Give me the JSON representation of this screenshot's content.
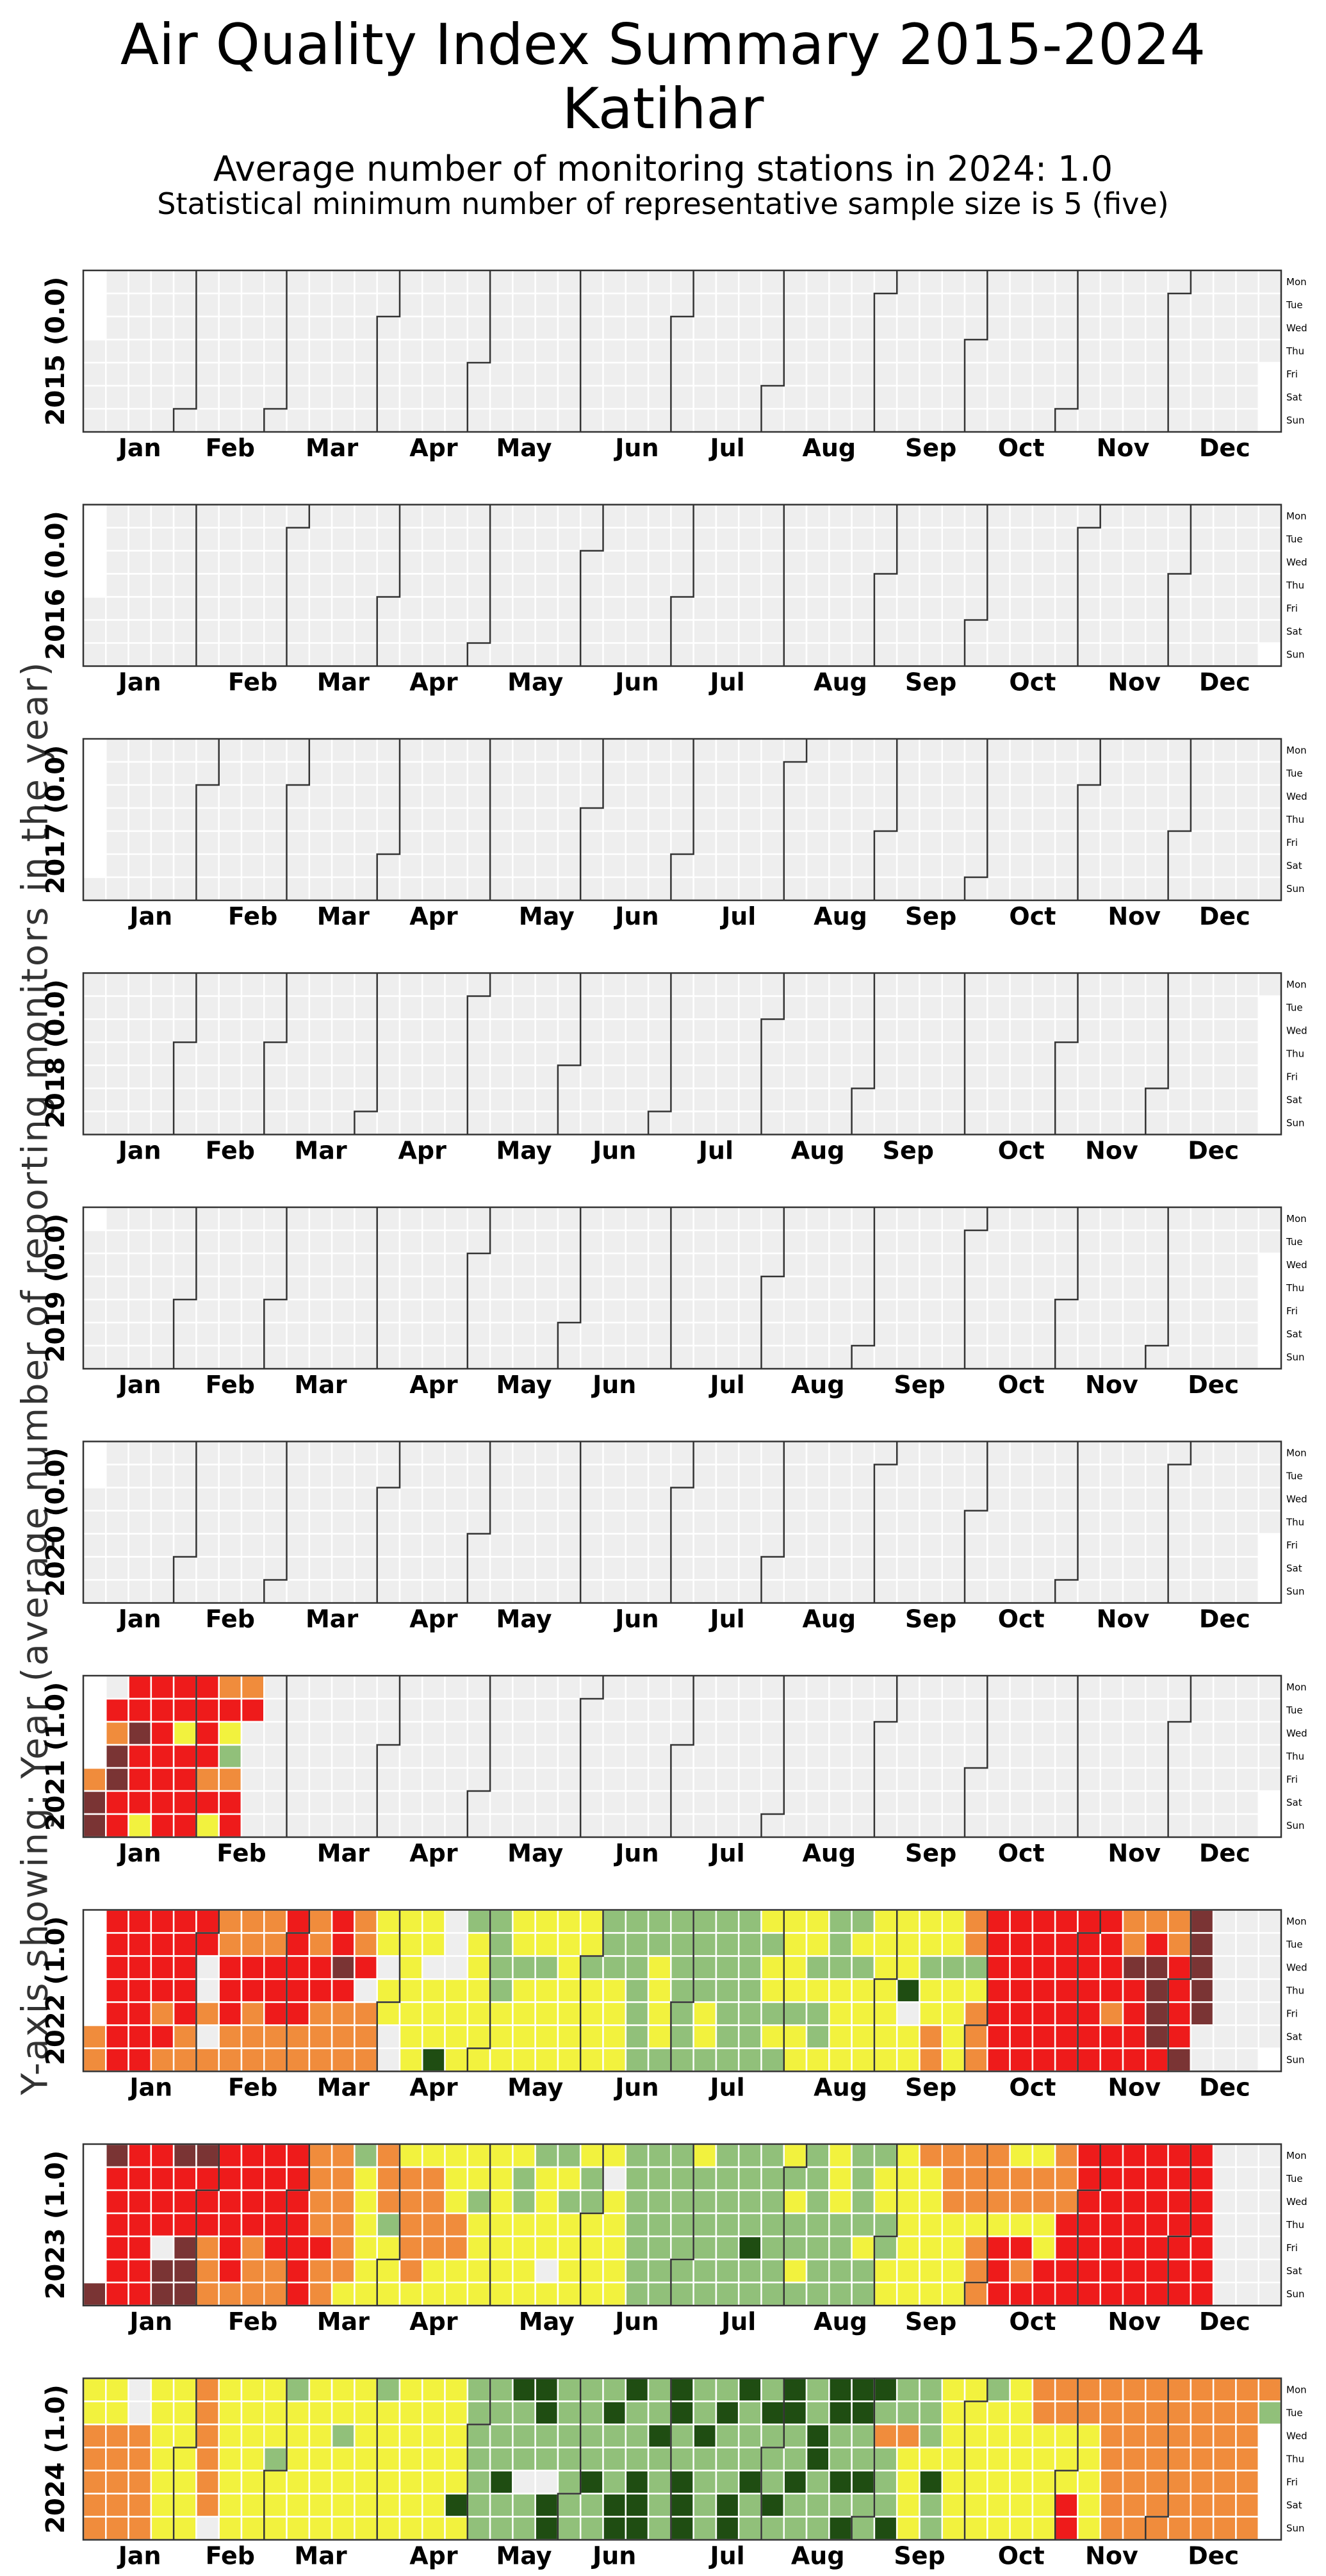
{
  "header": {
    "title": "Air Quality Index Summary 2015-2024",
    "city": "Katihar",
    "subtitle": "Average number of monitoring stations in 2024: 1.0",
    "note": "Statistical minimum number of representative sample size is 5 (five)"
  },
  "chart_data": {
    "type": "heatmap",
    "ylabel": "Y-axis showing: Year (average number of reporting monitors in the year)",
    "months": [
      "Jan",
      "Feb",
      "Mar",
      "Apr",
      "May",
      "Jun",
      "Jul",
      "Aug",
      "Sep",
      "Oct",
      "Nov",
      "Dec"
    ],
    "weekdays": [
      "Mon",
      "Tue",
      "Wed",
      "Thu",
      "Fri",
      "Sat",
      "Sun"
    ],
    "category_colors": {
      "no_data": "#eeeeee",
      "good": "#1f4d12",
      "satisfactory": "#91c07a",
      "moderate": "#f2f23e",
      "poor": "#f08c3c",
      "very_poor": "#ee1b1b",
      "severe": "#7a3434"
    },
    "legend_codes": "Each row of 'weeks' lists Mon..Sun category codes per week: . = no data, G = good, S = satisfactory, M = moderate, P = poor, V = very poor, X = severe",
    "years": [
      {
        "label": "2015 (0.0)",
        "year": 2015,
        "weeks": []
      },
      {
        "label": "2016 (0.0)",
        "year": 2016,
        "weeks": []
      },
      {
        "label": "2017 (0.0)",
        "year": 2017,
        "weeks": []
      },
      {
        "label": "2018 (0.0)",
        "year": 2018,
        "weeks": []
      },
      {
        "label": "2019 (0.0)",
        "year": 2019,
        "weeks": []
      },
      {
        "label": "2020 (0.0)",
        "year": 2020,
        "weeks": []
      },
      {
        "label": "2021 (1.0)",
        "year": 2021,
        "weeks": [
          "..P.PXX",
          ".VPXXVV",
          "VVXVVVM",
          "VVVVVVV",
          "VVMVVVV",
          "VVVVPVM",
          "PVMSPVV",
          "PV"
        ]
      },
      {
        "label": "2022 (1.0)",
        "year": 2022,
        "weeks": [
          ".....PP",
          "VVVVVVV",
          "VVVVVVV",
          "VVVVPVP",
          "VVVVVPP",
          "VV..P.P",
          "PPVVVPP",
          "PPVVPPP",
          "PPVVVPP",
          "VVVVVPP",
          "PPVVPPP",
          "VVXVPPP",
          "PPV.PPP",
          "MM.MM..",
          "MMMMMMM",
          "MM.MMMG",
          "...MMMM",
          "SMMMMMM",
          "SSSSMMM",
          "MMSMMMM",
          "MMSMMMM",
          "MMMMMMM",
          "MMSMMMM",
          "SSSMMMM",
          "SSSSSSS",
          "SSMMMMS",
          "SSSSSSS",
          "SSSSMMS",
          "SSSSSSS",
          "SSSSSSS",
          "MSMMSMS",
          "MMMMSMM",
          "MMSMSSM",
          "SSSMMMM",
          "SMSMMMM",
          "MMMMMMM",
          "MMMG.MM",
          "MMSMMPP",
          "MMSMMMM",
          "PPSMPPP",
          "VVVVVVV",
          "VVVVVVV",
          "VVVVVVV",
          "VVVVVVV",
          "VVVVVVV",
          "VVVVPVV",
          "PPXVVVV",
          "PVXXXXV",
          "PPVVVVX",
          "XXXXX"
        ]
      },
      {
        "label": "2023 (1.0)",
        "year": 2023,
        "weeks": [
          "......X",
          "XVVVVVV",
          "VVVVVVV",
          "VVVV.XX",
          "XVVVXXX",
          "XVVVPPP",
          "VVVVVVP",
          "VVVVPPP",
          "VVVVVPP",
          "VVVVVVV",
          "PPPPVPP",
          "PPPPPPM",
          "SMMMMMM",
          "PPPSMMM",
          "MPPPPPM",
          "MPPPPMM",
          "MMMPPMM",
          "MMSMMMM",
          "MMMMMMM",
          "MSSMMMM",
          "SMMMM.M",
          "SMSMMMM",
          "MSSMMMM",
          "M.MMMMM",
          "SSSSSSS",
          "SSSSSSS",
          "SSSSSSS",
          "MSSSSSS",
          "SSSSSSS",
          "SSSSGSS",
          "SSSSSSS",
          "MSMSSMS",
          "SSSSSSS",
          "MMMSSSS",
          "SSSSMSS",
          "SMMSSMM",
          "MMMMMMM",
          "PMMMMMM",
          "PPPMMMM",
          "PPPMPPP",
          "PPPMVVV",
          "MPPMVPV",
          "MPPMMVV",
          "PPPVVVV",
          "VVVVVVV",
          "VVVVVVV",
          "VVVVVVV",
          "VVVVVVV",
          "VVVVVVV",
          "VVVVVVV"
        ]
      },
      {
        "label": "2024 (1.0)",
        "year": 2024,
        "weeks": [
          "MMPPPPP",
          "MMPPPPP",
          "..PPPPP",
          "MMMMMMM",
          "MMMMMMM",
          "PPPPPP.",
          "MMMMMMM",
          "MMMMMMM",
          "MMMSMMM",
          "SMMMMMM",
          "MMMMMMM",
          "MMSMMMM",
          "MMMMMMM",
          "SMMMMMM",
          "MMMMMMM",
          "MMMMMMM",
          "MMMMMGM",
          "SSSSSSS",
          "SSSSGSS",
          "GSSS.SS",
          "GGSS.GG",
          "SSSSSSS",
          "SSSSGSS",
          "SGSSSGG",
          "GSSSGGG",
          "SSGSSSS",
          "GGSSGGG",
          "SSGSSSS",
          "SGSSSGG",
          "GSSSGSS",
          "SGSSSGS",
          "GGSSGSS",
          "SSGGSSS",
          "GGSSGSG",
          "GGSSGSS",
          "GSPSSSG",
          "SSPMMMM",
          "SSSMGSS",
          "MMMMMMM",
          "MMMMMMM",
          "SMMMMMM",
          "MMMMMMM",
          "PPMMMMM",
          "PPMMMVV",
          "PPMMMMM",
          "PPPPPPP",
          "PPPPPPP",
          "PPPPPPP",
          "PPPPPPP",
          "PPPPPPP",
          "PPPPPPP",
          "PPPPPPP",
          "PS"
        ]
      }
    ]
  }
}
